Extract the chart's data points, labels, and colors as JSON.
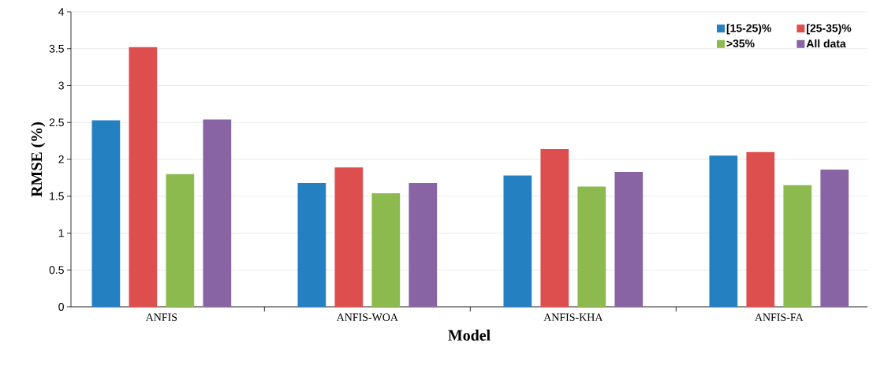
{
  "chart_data": {
    "type": "bar",
    "xlabel": "Model",
    "ylabel": "RMSE (%)",
    "categories": [
      "ANFIS",
      "ANFIS-WOA",
      "ANFIS-KHA",
      "ANFIS-FA"
    ],
    "series": [
      {
        "name": "[15-25)%",
        "color": "#2580c1",
        "values": [
          2.53,
          1.68,
          1.78,
          2.05
        ]
      },
      {
        "name": "[25-35)%",
        "color": "#dc4f4e",
        "values": [
          3.52,
          1.89,
          2.14,
          2.1
        ]
      },
      {
        "name": ">35%",
        "color": "#8dba4f",
        "values": [
          1.8,
          1.54,
          1.63,
          1.65
        ]
      },
      {
        "name": "All data",
        "color": "#8964a5",
        "values": [
          2.54,
          1.68,
          1.83,
          1.86
        ]
      }
    ],
    "ylim": [
      0,
      4
    ],
    "yticks": [
      0,
      0.5,
      1,
      1.5,
      2,
      2.5,
      3,
      3.5,
      4
    ],
    "grid": "y",
    "legend": "top right"
  }
}
